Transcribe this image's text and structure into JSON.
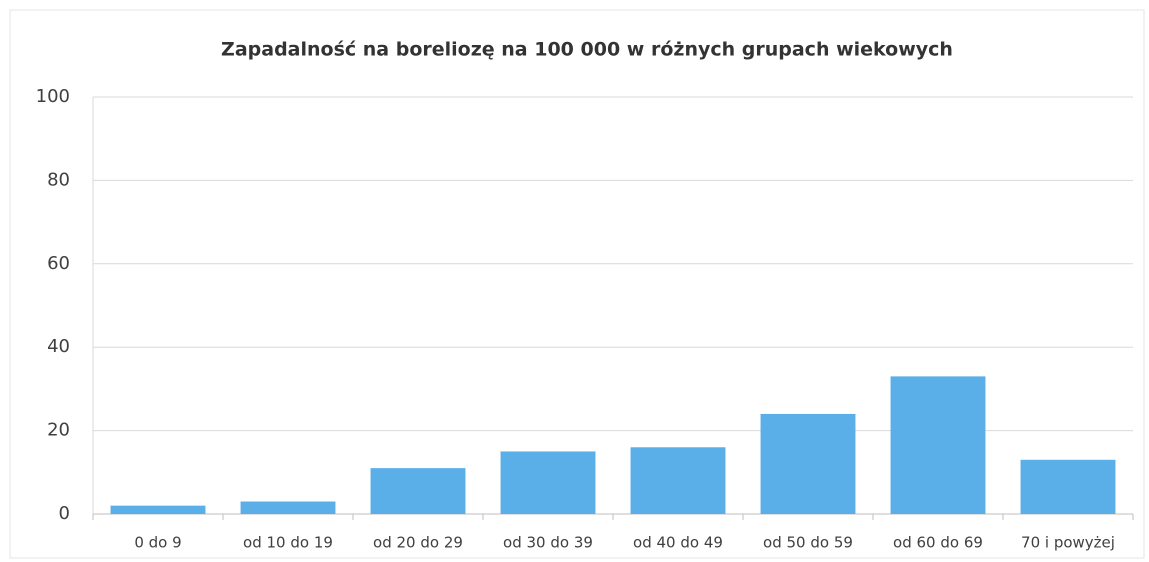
{
  "chart_data": {
    "type": "bar",
    "title": "Zapadalność na boreliozę na 100 000 w różnych grupach wiekowych",
    "categories": [
      "0 do 9",
      "od 10 do 19",
      "od 20 do 29",
      "od 30 do 39",
      "od 40 do 49",
      "od 50 do 59",
      "od 60 do 69",
      "70 i powyżej"
    ],
    "values": [
      2,
      3,
      11,
      15,
      16,
      24,
      33,
      13
    ],
    "color": "#5aafe8",
    "ylim": [
      0,
      100
    ],
    "yticks": [
      0,
      20,
      40,
      60,
      80,
      100
    ],
    "grid": true
  }
}
